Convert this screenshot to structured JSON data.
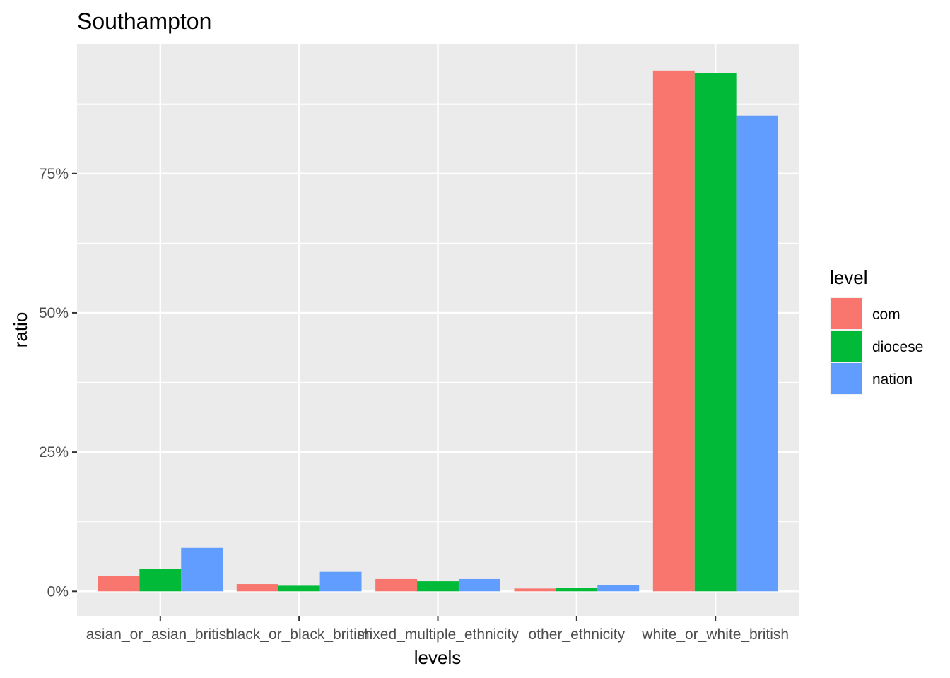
{
  "chart_data": {
    "type": "bar",
    "title": "Southampton",
    "xlabel": "levels",
    "ylabel": "ratio",
    "categories": [
      "asian_or_asian_british",
      "black_or_black_british",
      "mixed_multiple_ethnicity",
      "other_ethnicity",
      "white_or_white_british"
    ],
    "series": [
      {
        "name": "com",
        "color": "#F8766D",
        "values": [
          2.8,
          1.3,
          2.2,
          0.5,
          93.5
        ]
      },
      {
        "name": "diocese",
        "color": "#00BA38",
        "values": [
          4.0,
          1.0,
          1.8,
          0.6,
          93.0
        ]
      },
      {
        "name": "nation",
        "color": "#619CFF",
        "values": [
          7.8,
          3.5,
          2.2,
          1.1,
          85.4
        ]
      }
    ],
    "yticks": [
      0,
      25,
      50,
      75
    ],
    "ytick_labels": [
      "0%",
      "25%",
      "50%",
      "75%"
    ],
    "ylim": [
      -4.4,
      98.3
    ],
    "legend_title": "level",
    "legend_position": "right",
    "grid": true,
    "panel_color": "#EBEBEB",
    "grid_color": "#FFFFFF"
  }
}
